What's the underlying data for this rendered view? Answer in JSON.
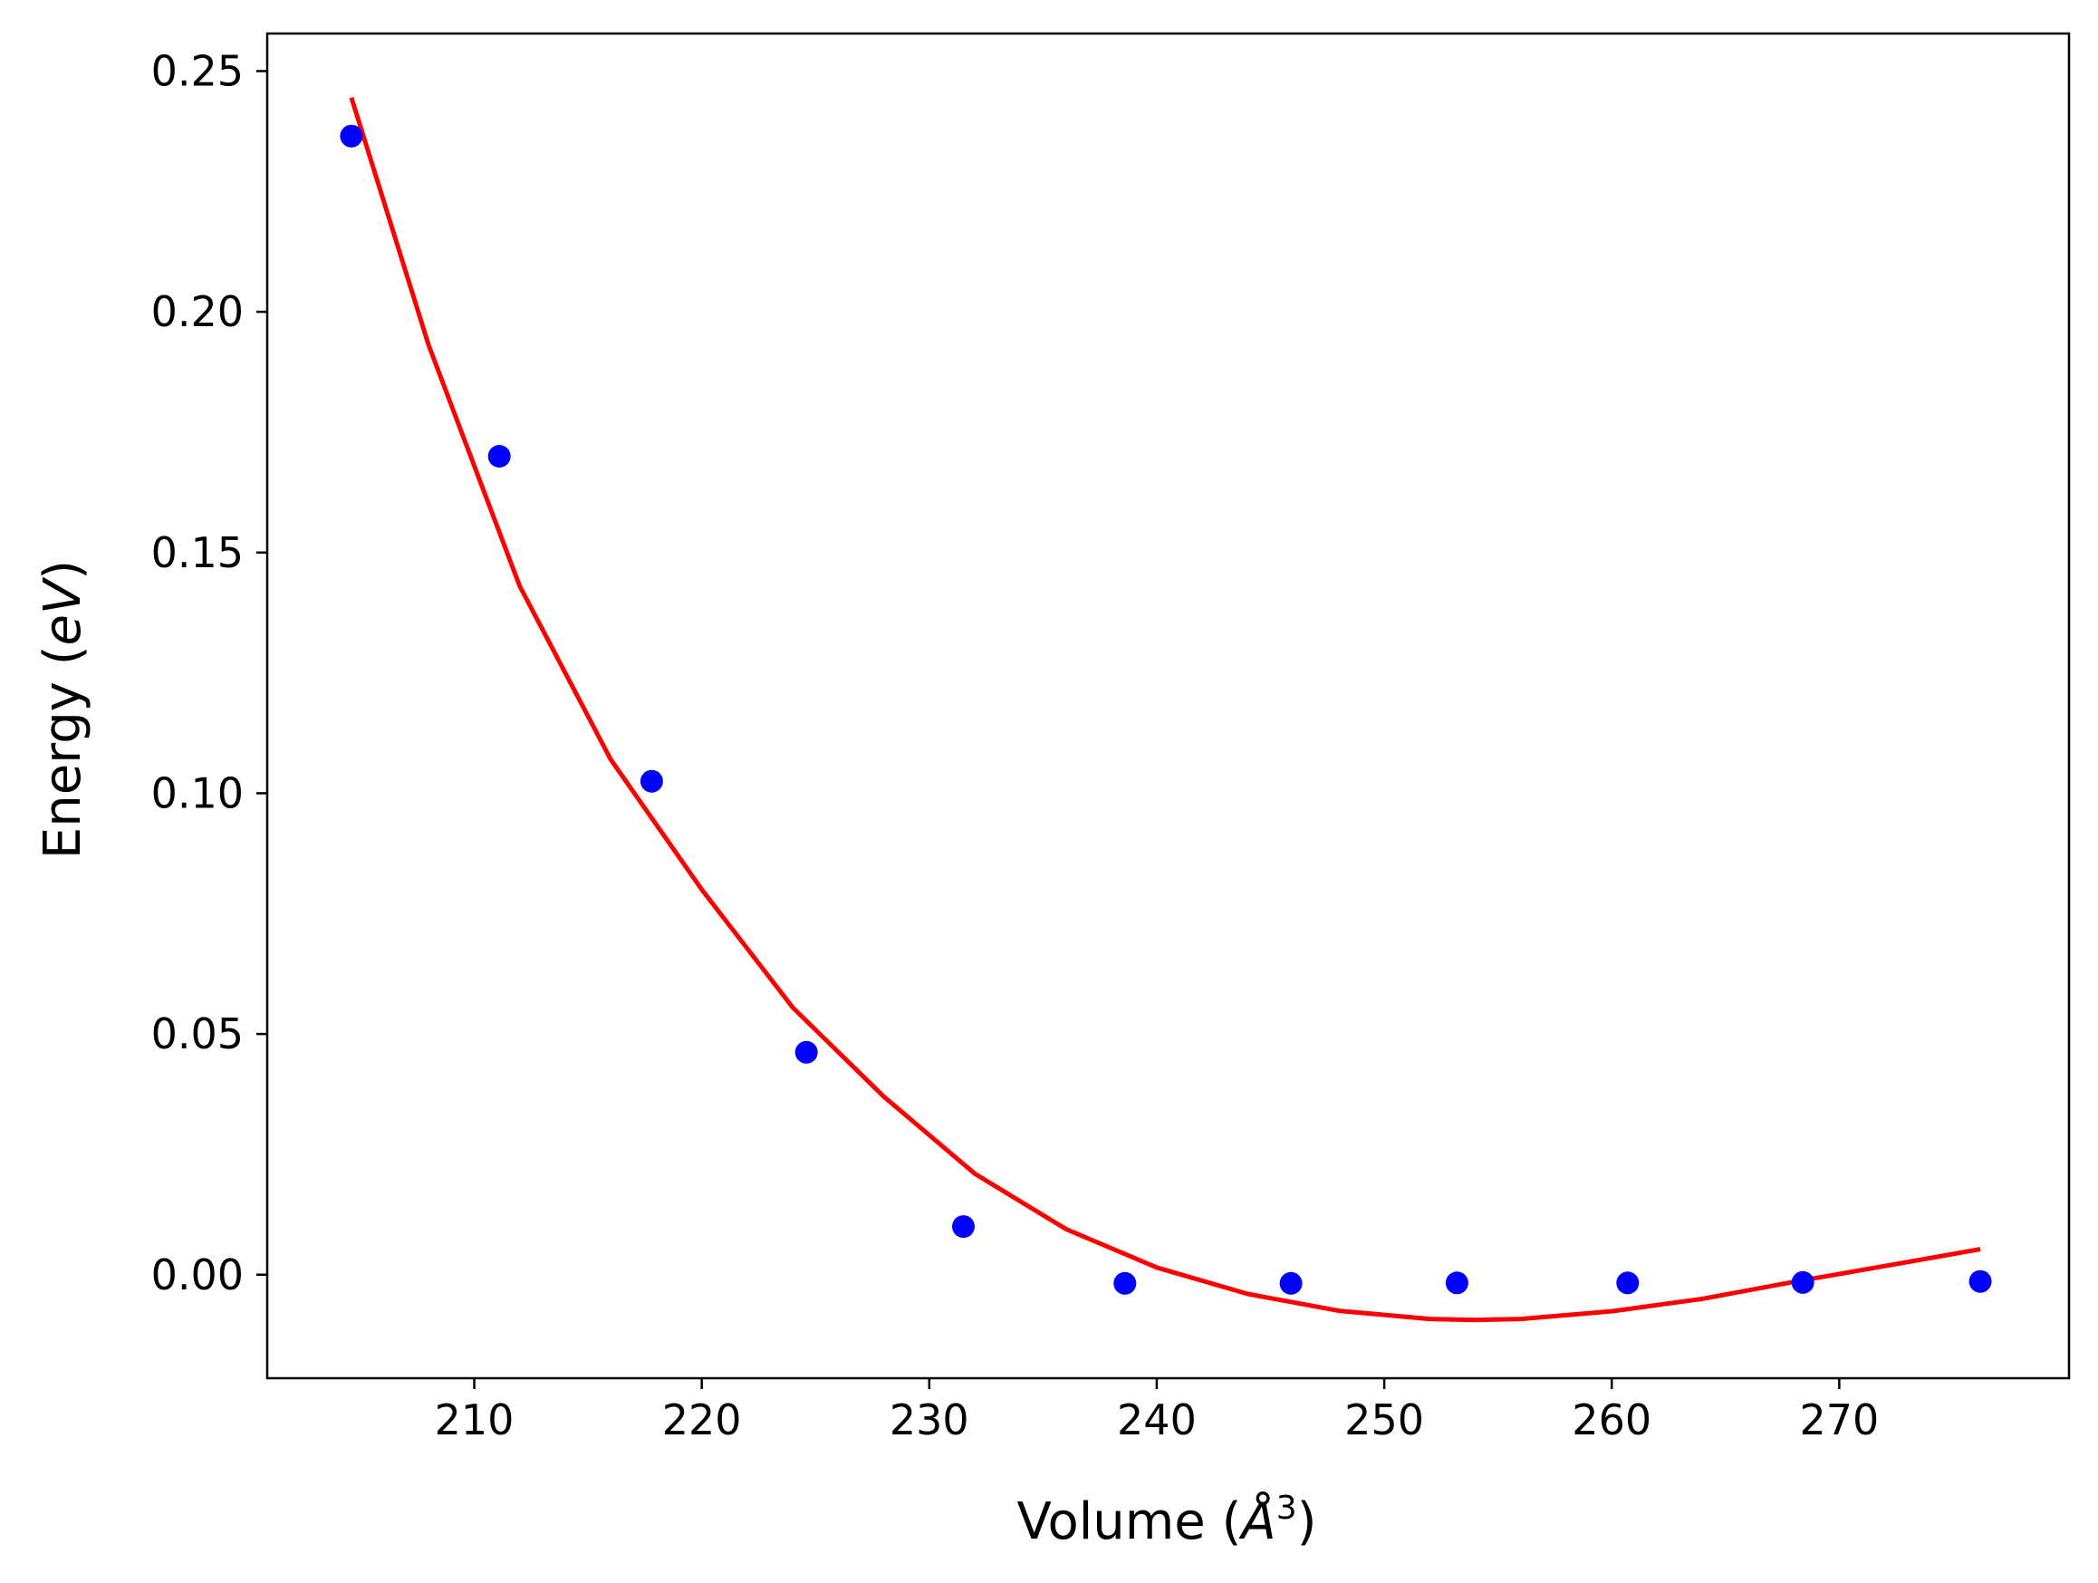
{
  "chart_data": {
    "type": "scatter",
    "title": "",
    "xlabel": "Volume (Å³)",
    "xlabel_parts": [
      "Volume (",
      "Å",
      "3",
      ")"
    ],
    "ylabel": "Energy (eV)",
    "ylabel_parts": [
      "Energy (",
      "eV",
      ")"
    ],
    "xlim": [
      200.9,
      280.1
    ],
    "ylim": [
      -0.0215,
      0.2578
    ],
    "xticks": [
      210,
      220,
      230,
      240,
      250,
      260,
      270
    ],
    "xtick_labels": [
      "210",
      "220",
      "230",
      "240",
      "250",
      "260",
      "270"
    ],
    "yticks": [
      0.0,
      0.05,
      0.1,
      0.15,
      0.2,
      0.25
    ],
    "ytick_labels": [
      "0.00",
      "0.05",
      "0.10",
      "0.15",
      "0.20",
      "0.25"
    ],
    "grid": false,
    "legend": false,
    "series": [
      {
        "kind": "points",
        "color": "#0000ff",
        "x": [
          204.6,
          211.1,
          217.8,
          224.6,
          231.5,
          238.6,
          245.9,
          253.2,
          260.7,
          268.4,
          276.2
        ],
        "y": [
          0.2365,
          0.17,
          0.1025,
          0.0462,
          0.01,
          -0.0018,
          -0.0018,
          -0.0017,
          -0.0017,
          -0.0016,
          -0.0014
        ]
      },
      {
        "kind": "fit-curve",
        "color": "#ff0000",
        "x": [
          204.6,
          208.0,
          212.0,
          216.0,
          220.0,
          224.0,
          228.0,
          232.0,
          236.0,
          240.0,
          244.0,
          248.0,
          252.0,
          254.0,
          256.0,
          260.0,
          264.0,
          268.0,
          272.0,
          276.2
        ],
        "y": [
          0.2445,
          0.193,
          0.143,
          0.107,
          0.08,
          0.0555,
          0.037,
          0.021,
          0.0095,
          0.0015,
          -0.004,
          -0.0075,
          -0.0092,
          -0.0094,
          -0.0092,
          -0.0076,
          -0.005,
          -0.0015,
          0.0018,
          0.0053
        ]
      }
    ]
  }
}
